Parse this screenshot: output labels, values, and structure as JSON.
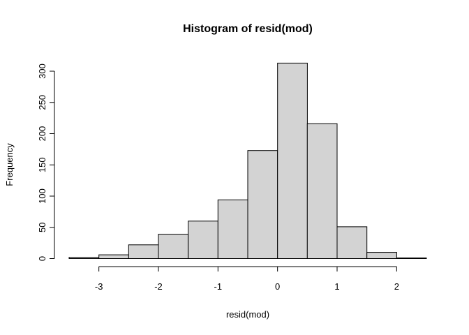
{
  "chart_data": {
    "type": "histogram",
    "title": "Histogram of resid(mod)",
    "xlabel": "resid(mod)",
    "ylabel": "Frequency",
    "bins": [
      {
        "x0": -3.5,
        "x1": -3.0,
        "count": 2
      },
      {
        "x0": -3.0,
        "x1": -2.5,
        "count": 6
      },
      {
        "x0": -2.5,
        "x1": -2.0,
        "count": 22
      },
      {
        "x0": -2.0,
        "x1": -1.5,
        "count": 39
      },
      {
        "x0": -1.5,
        "x1": -1.0,
        "count": 60
      },
      {
        "x0": -1.0,
        "x1": -0.5,
        "count": 94
      },
      {
        "x0": -0.5,
        "x1": 0.0,
        "count": 173
      },
      {
        "x0": 0.0,
        "x1": 0.5,
        "count": 313
      },
      {
        "x0": 0.5,
        "x1": 1.0,
        "count": 216
      },
      {
        "x0": 1.0,
        "x1": 1.5,
        "count": 51
      },
      {
        "x0": 1.5,
        "x1": 2.0,
        "count": 10
      },
      {
        "x0": 2.0,
        "x1": 2.5,
        "count": 1
      }
    ],
    "x_ticks": [
      -3,
      -2,
      -1,
      0,
      1,
      2
    ],
    "x_tick_labels": [
      "-3",
      "-2",
      "-1",
      "0",
      "1",
      "2"
    ],
    "y_ticks": [
      0,
      50,
      100,
      150,
      200,
      250,
      300
    ],
    "y_tick_labels": [
      "0",
      "50",
      "100",
      "150",
      "200",
      "250",
      "300"
    ],
    "xlim": [
      -3.5,
      2.5
    ],
    "ylim": [
      0,
      300
    ],
    "grid": false,
    "bar_fill": "#d3d3d3",
    "bar_stroke": "#000000"
  }
}
